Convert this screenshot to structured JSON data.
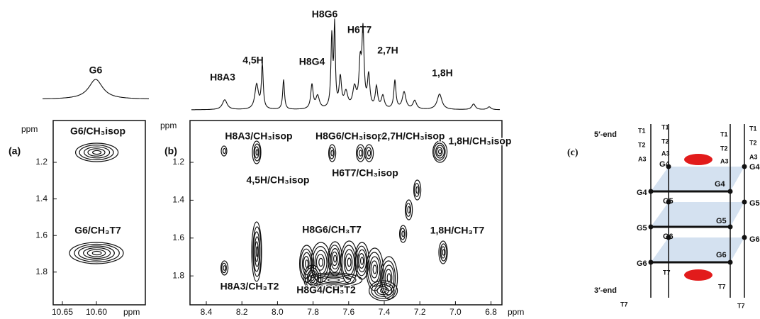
{
  "panel_a": {
    "label": "(a)",
    "peak_label": "G6",
    "y_unit": "ppm",
    "x_unit": "ppm",
    "cross_peaks": [
      "G6/CH₃isop",
      "G6/CH₃T7"
    ],
    "yticks": [
      1.2,
      1.4,
      1.6,
      1.8
    ],
    "xticks": [
      10.65,
      {
        "value": 10.6,
        "label": "10.60"
      }
    ]
  },
  "panel_b": {
    "label": "(b)",
    "y_unit": "ppm",
    "x_unit": "ppm",
    "peak_labels": [
      "H8A3",
      "4,5H",
      "H8G4",
      "H8G6",
      "H6T7",
      "2,7H",
      "1,8H"
    ],
    "cross_peaks": [
      "H8A3/CH₃isop",
      "4,5H/CH₃isop",
      "H8G6/CH₃isop",
      "H6T7/CH₃isop",
      "2,7H/CH₃isop",
      "1,8H/CH₃isop",
      "H8G6/CH₃T7",
      "1,8H/CH₃T7",
      "H8A3/CH₃T2",
      "H8G4/CH₃T2"
    ],
    "yticks": [
      1.2,
      1.4,
      1.6,
      1.8
    ],
    "xticks": [
      8.4,
      8.2,
      {
        "value": 8,
        "label": "8.0"
      },
      7.8,
      7.6,
      7.4,
      7.2,
      {
        "value": 7,
        "label": "7.0"
      },
      6.8
    ]
  },
  "panel_c": {
    "label": "(c)",
    "five_end": "5′-end",
    "three_end": "3′-end",
    "nucleotides": [
      "T1",
      "T2",
      "A3",
      "T1",
      "T2",
      "A3",
      "G4",
      "T1",
      "T2",
      "A3",
      "T1",
      "T2",
      "A3",
      "G4",
      "G4",
      "G4",
      "G5",
      "G5",
      "G5",
      "G5",
      "G6",
      "G6",
      "G6",
      "G6",
      "T7",
      "T7",
      "T7",
      "T7"
    ]
  }
}
